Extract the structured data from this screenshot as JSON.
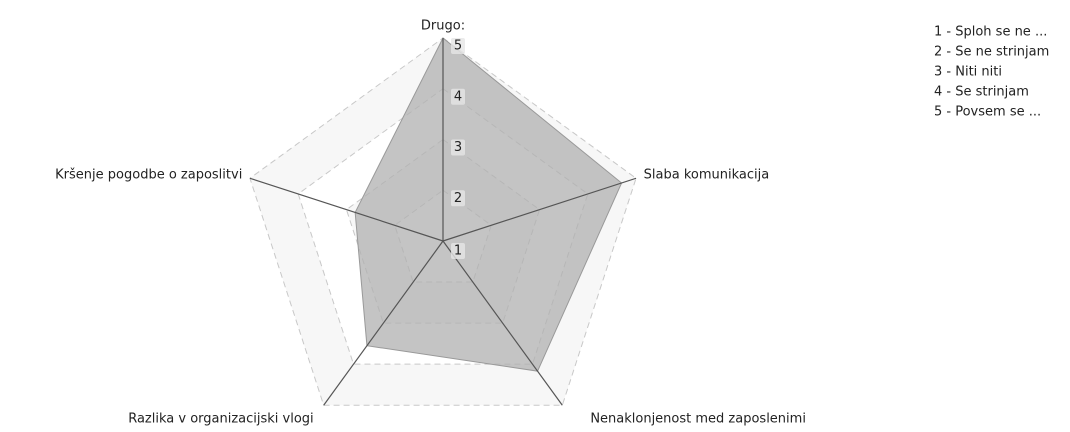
{
  "chart_data": {
    "type": "radar",
    "categories": [
      "Drugo:",
      "Slaba komunikacija",
      "Nenaklonjenost med zaposlenimi",
      "Razlika v organizacijski vlogi",
      "Kršenje pogodbe o zaposlitvi"
    ],
    "values": [
      5,
      4.7,
      4.17,
      3.55,
      2.82
    ],
    "color": "#b0b0b0",
    "ylim": [
      1,
      5
    ],
    "yticks": [
      1,
      2,
      3,
      4,
      5
    ],
    "grid": true,
    "legend": [
      "1 - Sploh se ne ...",
      "2 - Se ne strinjam",
      "3 - Niti niti",
      "4 - Se strinjam",
      "5 - Povsem se ..."
    ]
  }
}
